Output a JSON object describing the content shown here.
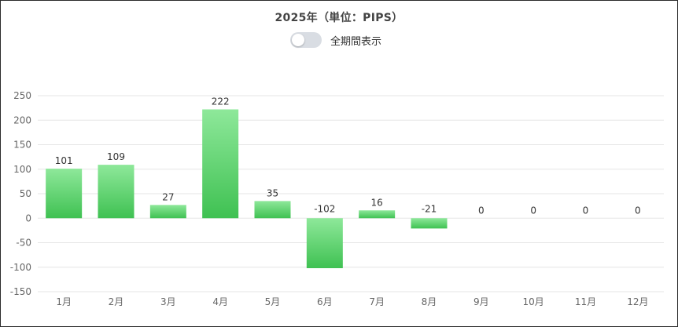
{
  "header": {
    "title": "2025年（単位：PIPS）",
    "toggle_label": "全期間表示",
    "toggle_on": false
  },
  "chart_data": {
    "type": "bar",
    "title": "2025年（単位：PIPS）",
    "categories": [
      "1月",
      "2月",
      "3月",
      "4月",
      "5月",
      "6月",
      "7月",
      "8月",
      "9月",
      "10月",
      "11月",
      "12月"
    ],
    "values": [
      101,
      109,
      27,
      222,
      35,
      -102,
      16,
      -21,
      0,
      0,
      0,
      0
    ],
    "ylim": [
      -150,
      250
    ],
    "yticks": [
      250,
      200,
      150,
      100,
      50,
      0,
      -50,
      -100,
      -150
    ],
    "grid": true,
    "legend": "none",
    "colors": {
      "bar_top": "#8ee89a",
      "bar_bottom": "#3fc152",
      "grid": "#e6e6e6"
    }
  }
}
